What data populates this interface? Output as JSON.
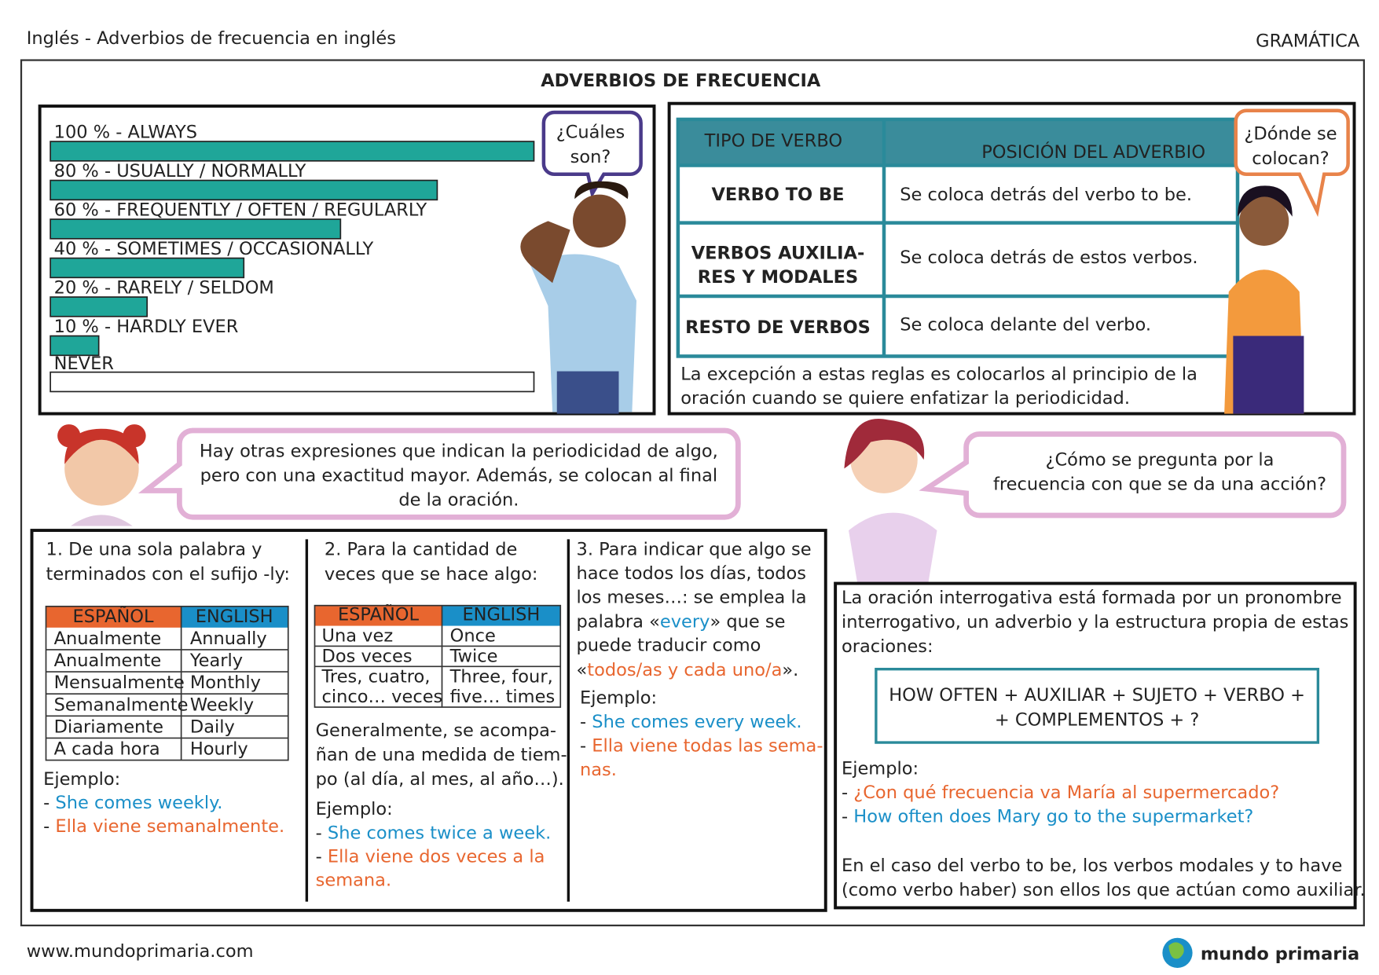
{
  "header": {
    "title": "Inglés - Adverbios de frecuencia en inglés",
    "section": "GRAMÁTICA"
  },
  "main_title": "ADVERBIOS DE FRECUENCIA",
  "frequency_chart": {
    "type": "bar",
    "orientation": "horizontal",
    "categories": [
      "100 % - ALWAYS",
      "80 % - USUALLY / NORMALLY",
      "60 % - FREQUENTLY / OFTEN / REGULARLY",
      "40 % - SOMETIMES / OCCASIONALLY",
      "20 % - RARELY / SELDOM",
      "10 % - HARDLY EVER",
      "NEVER"
    ],
    "values": [
      100,
      80,
      60,
      40,
      20,
      10,
      0
    ],
    "xlim": [
      0,
      100
    ],
    "color": "#1fa699"
  },
  "bubbles": {
    "which": [
      "¿Cuáles",
      "son?"
    ],
    "where": [
      "¿Dónde se",
      "colocan?"
    ],
    "expressions": [
      "Hay otras expresiones que indican la periodicidad de algo,",
      "pero con una exactitud mayor. Además, se colocan al final",
      "de la oración."
    ],
    "ask": [
      "¿Cómo se pregunta por la",
      "frecuencia con que se da una acción?"
    ]
  },
  "position_table": {
    "headers": [
      "TIPO DE VERBO",
      "POSICIÓN DEL ADVERBIO"
    ],
    "rows": [
      [
        [
          "VERBO TO BE"
        ],
        [
          "Se coloca detrás del verbo to be."
        ]
      ],
      [
        [
          "VERBOS AUXILIA-",
          "RES Y MODALES"
        ],
        [
          "Se coloca detrás de estos verbos."
        ]
      ],
      [
        [
          "RESTO DE VERBOS"
        ],
        [
          "Se coloca delante del verbo."
        ]
      ]
    ],
    "note": [
      "La excepción a estas reglas es colocarlos al principio de la",
      "oración cuando se quiere enfatizar la periodicidad."
    ]
  },
  "section1": {
    "intro": [
      "1. De una sola palabra y",
      "terminados con el sufijo -ly:"
    ],
    "table": {
      "headers": [
        "ESPAÑOL",
        "ENGLISH"
      ],
      "rows": [
        [
          "Anualmente",
          "Annually"
        ],
        [
          "Anualmente",
          "Yearly"
        ],
        [
          "Mensualmente",
          "Monthly"
        ],
        [
          "Semanalmente",
          "Weekly"
        ],
        [
          "Diariamente",
          "Daily"
        ],
        [
          "A cada hora",
          "Hourly"
        ]
      ]
    },
    "example": [
      "Ejemplo:",
      [
        {
          "text": "- "
        },
        {
          "text": "She comes weekly.",
          "color": "#1a8fc8"
        }
      ],
      [
        {
          "text": "- "
        },
        {
          "text": "Ella viene semanalmente.",
          "color": "#e8662f"
        }
      ]
    ]
  },
  "section2": {
    "intro": [
      "2. Para la cantidad de",
      "veces que se hace algo:"
    ],
    "table": {
      "headers": [
        "ESPAÑOL",
        "ENGLISH"
      ],
      "rows": [
        [
          [
            "Una vez"
          ],
          [
            "Once"
          ]
        ],
        [
          [
            "Dos veces"
          ],
          [
            "Twice"
          ]
        ],
        [
          [
            "Tres, cuatro,",
            "cinco… veces"
          ],
          [
            "Three, four,",
            "five… times"
          ]
        ]
      ]
    },
    "text": [
      "Generalmente, se acompa-",
      "ñan de una medida de tiem-",
      "po (al día, al mes, al año…)."
    ],
    "example": [
      "Ejemplo:",
      [
        {
          "text": "- "
        },
        {
          "text": "She comes twice a week.",
          "color": "#1a8fc8"
        }
      ],
      [
        {
          "text": "- "
        },
        {
          "text": "Ella viene dos veces a la",
          "color": "#e8662f"
        }
      ],
      [
        {
          "text": "semana.",
          "color": "#e8662f"
        }
      ]
    ]
  },
  "section3": {
    "text": [
      "3. Para indicar que algo se",
      "hace todos los días, todos",
      "los meses…: se emplea la",
      [
        {
          "text": "palabra «"
        },
        {
          "text": "every",
          "color": "#1a8fc8"
        },
        {
          "text": "» que se"
        }
      ],
      "puede traducir como",
      [
        {
          "text": "«"
        },
        {
          "text": "todos/as y cada uno/a",
          "color": "#e8662f"
        },
        {
          "text": "»."
        }
      ]
    ],
    "example": [
      "Ejemplo:",
      [
        {
          "text": "- "
        },
        {
          "text": "She comes every week.",
          "color": "#1a8fc8"
        }
      ],
      [
        {
          "text": "- "
        },
        {
          "text": "Ella viene todas las sema-",
          "color": "#e8662f"
        }
      ],
      [
        {
          "text": "nas.",
          "color": "#e8662f"
        }
      ]
    ]
  },
  "section4": {
    "text": [
      "La oración interrogativa está formada por un pronombre",
      "interrogativo, un adverbio y la estructura propia de estas",
      "oraciones:"
    ],
    "formula": [
      "HOW OFTEN + AUXILIAR + SUJETO + VERBO +",
      "+ COMPLEMENTOS + ?"
    ],
    "example": [
      "Ejemplo:",
      [
        {
          "text": "- "
        },
        {
          "text": "¿Con qué frecuencia va María al supermercado?",
          "color": "#e8662f"
        }
      ],
      [
        {
          "text": "- "
        },
        {
          "text": "How often does Mary go to the supermarket?",
          "color": "#1a8fc8"
        }
      ]
    ],
    "note": [
      "En el caso del verbo to be, los verbos modales y to have",
      "(como verbo haber) son ellos los que actúan como auxiliar."
    ]
  },
  "footer": {
    "url": "www.mundoprimaria.com",
    "logo": "mundo primaria"
  }
}
